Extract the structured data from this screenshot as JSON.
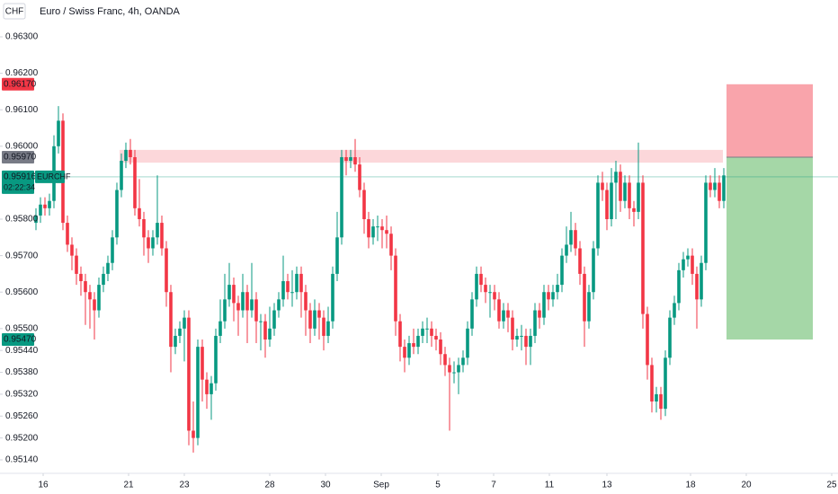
{
  "chart_data": {
    "type": "candlestick",
    "currency": "CHF",
    "title": "Euro / Swiss Franc, 4h, OANDA",
    "up_color": "#089981",
    "down_color": "#f23645",
    "open": [
      0.9579,
      0.9581,
      0.9584,
      0.9583,
      0.9585,
      0.96,
      0.9607,
      0.9579,
      0.9573,
      0.957,
      0.9565,
      0.9563,
      0.956,
      0.9558,
      0.9555,
      0.9562,
      0.9565,
      0.9568,
      0.9575,
      0.9588,
      0.9596,
      0.9599,
      0.9597,
      0.9583,
      0.958,
      0.9575,
      0.9572,
      0.9575,
      0.9579,
      0.9572,
      0.956,
      0.9545,
      0.9548,
      0.955,
      0.9553,
      0.9522,
      0.952,
      0.9545,
      0.9536,
      0.9532,
      0.9535,
      0.9548,
      0.9552,
      0.9558,
      0.9562,
      0.9557,
      0.9555,
      0.956,
      0.9555,
      0.9558,
      0.9552,
      0.9552,
      0.9547,
      0.955,
      0.9555,
      0.9558,
      0.9563,
      0.956,
      0.956,
      0.9565,
      0.956,
      0.9555,
      0.955,
      0.9555,
      0.9553,
      0.9548,
      0.9552,
      0.9565,
      0.9575,
      0.9597,
      0.9596,
      0.9597,
      0.9595,
      0.9588,
      0.958,
      0.9575,
      0.9578,
      0.9578,
      0.9577,
      0.9576,
      0.957,
      0.9552,
      0.9545,
      0.9542,
      0.9546,
      0.9545,
      0.9548,
      0.955,
      0.955,
      0.9548,
      0.9547,
      0.9543,
      0.954,
      0.9538,
      0.9538,
      0.954,
      0.9542,
      0.955,
      0.9558,
      0.9565,
      0.9562,
      0.956,
      0.956,
      0.9558,
      0.9552,
      0.9555,
      0.9553,
      0.9547,
      0.9548,
      0.9548,
      0.9545,
      0.9548,
      0.9555,
      0.9553,
      0.956,
      0.9558,
      0.956,
      0.9562,
      0.957,
      0.9573,
      0.9577,
      0.9572,
      0.9565,
      0.9552,
      0.956,
      0.9572,
      0.959,
      0.9588,
      0.958,
      0.959,
      0.9593,
      0.9585,
      0.959,
      0.9583,
      0.9582,
      0.959,
      0.9554,
      0.954,
      0.953,
      0.9532,
      0.9528,
      0.9542,
      0.9553,
      0.9557,
      0.9566,
      0.9569,
      0.957,
      0.9565,
      0.9558,
      0.9568,
      0.959,
      0.9588,
      0.959,
      0.9585
    ],
    "high": [
      0.9583,
      0.9586,
      0.9586,
      0.9587,
      0.9603,
      0.9611,
      0.9609,
      0.9581,
      0.9575,
      0.9572,
      0.9567,
      0.9565,
      0.9562,
      0.956,
      0.9564,
      0.9567,
      0.957,
      0.9577,
      0.959,
      0.9598,
      0.9601,
      0.9602,
      0.9599,
      0.9591,
      0.9582,
      0.9577,
      0.9577,
      0.9592,
      0.9581,
      0.9574,
      0.9562,
      0.955,
      0.9552,
      0.9555,
      0.9555,
      0.953,
      0.9547,
      0.9547,
      0.9538,
      0.9537,
      0.955,
      0.9558,
      0.9565,
      0.9568,
      0.9564,
      0.9559,
      0.9565,
      0.9562,
      0.9568,
      0.956,
      0.9554,
      0.9554,
      0.9556,
      0.9557,
      0.956,
      0.957,
      0.9565,
      0.9566,
      0.9567,
      0.9567,
      0.9562,
      0.9557,
      0.9558,
      0.9557,
      0.9555,
      0.9556,
      0.9567,
      0.9582,
      0.9599,
      0.9599,
      0.9599,
      0.9602,
      0.9597,
      0.959,
      0.9582,
      0.958,
      0.9581,
      0.958,
      0.9581,
      0.9578,
      0.9572,
      0.9554,
      0.9547,
      0.9548,
      0.955,
      0.955,
      0.9552,
      0.9553,
      0.9552,
      0.955,
      0.9549,
      0.9545,
      0.9542,
      0.9541,
      0.9542,
      0.9544,
      0.9552,
      0.956,
      0.9567,
      0.9567,
      0.9564,
      0.9562,
      0.9562,
      0.956,
      0.9557,
      0.9557,
      0.9555,
      0.955,
      0.9551,
      0.955,
      0.955,
      0.9557,
      0.9557,
      0.9562,
      0.9562,
      0.9562,
      0.9565,
      0.9572,
      0.9578,
      0.9582,
      0.9579,
      0.9574,
      0.9567,
      0.9562,
      0.9574,
      0.9592,
      0.9593,
      0.959,
      0.9594,
      0.9596,
      0.9595,
      0.9592,
      0.9592,
      0.9585,
      0.9601,
      0.9592,
      0.9556,
      0.9542,
      0.9534,
      0.9534,
      0.9544,
      0.9555,
      0.9559,
      0.9568,
      0.9571,
      0.9572,
      0.9572,
      0.9567,
      0.957,
      0.9592,
      0.9592,
      0.9594,
      0.9592,
      0.9594
    ],
    "low": [
      0.9577,
      0.9579,
      0.9581,
      0.9581,
      0.9583,
      0.9598,
      0.9577,
      0.9571,
      0.9566,
      0.9562,
      0.9559,
      0.9551,
      0.955,
      0.9547,
      0.9553,
      0.956,
      0.9563,
      0.9566,
      0.9573,
      0.9586,
      0.9594,
      0.9595,
      0.9581,
      0.9578,
      0.957,
      0.9568,
      0.957,
      0.9573,
      0.957,
      0.9556,
      0.9538,
      0.9543,
      0.9546,
      0.9541,
      0.9518,
      0.9516,
      0.9518,
      0.953,
      0.9528,
      0.9525,
      0.9533,
      0.9546,
      0.955,
      0.9556,
      0.9552,
      0.9548,
      0.9553,
      0.9546,
      0.9553,
      0.9546,
      0.9544,
      0.9542,
      0.9545,
      0.9548,
      0.9553,
      0.9556,
      0.9558,
      0.9556,
      0.9558,
      0.9553,
      0.9548,
      0.9546,
      0.9548,
      0.9547,
      0.9544,
      0.9546,
      0.955,
      0.9563,
      0.9573,
      0.9592,
      0.9594,
      0.9593,
      0.9586,
      0.9576,
      0.9572,
      0.9573,
      0.9574,
      0.9572,
      0.9572,
      0.9566,
      0.9548,
      0.9541,
      0.9538,
      0.954,
      0.9543,
      0.9543,
      0.9546,
      0.9546,
      0.9545,
      0.9544,
      0.954,
      0.9537,
      0.9522,
      0.9535,
      0.9532,
      0.9538,
      0.954,
      0.9548,
      0.9556,
      0.956,
      0.9557,
      0.9553,
      0.9555,
      0.955,
      0.955,
      0.9549,
      0.9544,
      0.9545,
      0.9544,
      0.954,
      0.954,
      0.9546,
      0.955,
      0.9551,
      0.9555,
      0.9556,
      0.9558,
      0.956,
      0.9568,
      0.9571,
      0.957,
      0.9562,
      0.9545,
      0.955,
      0.9558,
      0.957,
      0.9585,
      0.9577,
      0.9578,
      0.958,
      0.9582,
      0.9583,
      0.958,
      0.9578,
      0.958,
      0.955,
      0.9536,
      0.9527,
      0.9527,
      0.9525,
      0.9526,
      0.954,
      0.9551,
      0.9555,
      0.9564,
      0.9567,
      0.9562,
      0.955,
      0.9556,
      0.9566,
      0.9586,
      0.9586,
      0.9583,
      0.9583
    ],
    "close": [
      0.9581,
      0.9584,
      0.9583,
      0.9585,
      0.96,
      0.9607,
      0.9579,
      0.9573,
      0.957,
      0.9565,
      0.9563,
      0.956,
      0.9558,
      0.9555,
      0.9562,
      0.9565,
      0.9568,
      0.9575,
      0.9588,
      0.9596,
      0.9599,
      0.9597,
      0.9583,
      0.958,
      0.9575,
      0.9572,
      0.9575,
      0.9579,
      0.9572,
      0.956,
      0.9545,
      0.9548,
      0.955,
      0.9553,
      0.9522,
      0.952,
      0.9545,
      0.9536,
      0.9532,
      0.9535,
      0.9548,
      0.9552,
      0.9558,
      0.9562,
      0.9557,
      0.9555,
      0.956,
      0.9555,
      0.9558,
      0.9552,
      0.9552,
      0.9547,
      0.955,
      0.9555,
      0.9558,
      0.9563,
      0.956,
      0.956,
      0.9565,
      0.956,
      0.9555,
      0.955,
      0.9555,
      0.9553,
      0.9548,
      0.9552,
      0.9565,
      0.9575,
      0.9597,
      0.9596,
      0.9597,
      0.9595,
      0.9588,
      0.958,
      0.9575,
      0.9578,
      0.9578,
      0.9577,
      0.9576,
      0.957,
      0.9552,
      0.9545,
      0.9542,
      0.9546,
      0.9545,
      0.9548,
      0.955,
      0.955,
      0.9548,
      0.9547,
      0.9543,
      0.954,
      0.9538,
      0.9538,
      0.954,
      0.9542,
      0.955,
      0.9558,
      0.9565,
      0.9562,
      0.956,
      0.956,
      0.9558,
      0.9552,
      0.9555,
      0.9553,
      0.9547,
      0.9548,
      0.9548,
      0.9545,
      0.9548,
      0.9555,
      0.9553,
      0.956,
      0.9558,
      0.956,
      0.9562,
      0.957,
      0.9573,
      0.9577,
      0.9572,
      0.9565,
      0.9552,
      0.956,
      0.9572,
      0.959,
      0.9588,
      0.958,
      0.959,
      0.9593,
      0.9585,
      0.959,
      0.9583,
      0.9582,
      0.959,
      0.9554,
      0.954,
      0.953,
      0.9532,
      0.9528,
      0.9542,
      0.9553,
      0.9557,
      0.9566,
      0.9569,
      0.957,
      0.9565,
      0.9558,
      0.9568,
      0.959,
      0.9588,
      0.959,
      0.9585,
      0.9592
    ],
    "xlim": [
      -0.4,
      178.4
    ],
    "xticks": [
      {
        "value": 1.6,
        "label": "16"
      },
      {
        "value": 20.6,
        "label": "21"
      },
      {
        "value": 33,
        "label": "23"
      },
      {
        "value": 52,
        "label": "28"
      },
      {
        "value": 64.4,
        "label": "30"
      },
      {
        "value": 76.8,
        "label": "Sep"
      },
      {
        "value": 89.4,
        "label": "5"
      },
      {
        "value": 101.8,
        "label": "7"
      },
      {
        "value": 114.2,
        "label": "11"
      },
      {
        "value": 127,
        "label": "13"
      },
      {
        "value": 145.6,
        "label": "18"
      },
      {
        "value": 158,
        "label": "20"
      },
      {
        "value": 177,
        "label": "25"
      }
    ],
    "ylim": [
      0.95103,
      0.96401
    ],
    "yticks": [
      {
        "value": 0.963,
        "label": "0.96300"
      },
      {
        "value": 0.962,
        "label": "0.96200"
      },
      {
        "value": 0.961,
        "label": "0.96100"
      },
      {
        "value": 0.96,
        "label": "0.96000"
      },
      {
        "value": 0.958,
        "label": "0.95800"
      },
      {
        "value": 0.957,
        "label": "0.95700"
      },
      {
        "value": 0.956,
        "label": "0.95600"
      },
      {
        "value": 0.955,
        "label": "0.95500"
      },
      {
        "value": 0.9544,
        "label": "0.95440"
      },
      {
        "value": 0.9538,
        "label": "0.95380"
      },
      {
        "value": 0.9532,
        "label": "0.95320"
      },
      {
        "value": 0.9526,
        "label": "0.95260"
      },
      {
        "value": 0.952,
        "label": "0.95200"
      },
      {
        "value": 0.9514,
        "label": "0.95140"
      }
    ],
    "zone": [
      0.95955,
      0.9599
    ],
    "position": {
      "stop": {
        "value": 0.9617,
        "label": "0.96170"
      },
      "entry": {
        "value": 0.9597,
        "label": "0.95970"
      },
      "target": {
        "value": 0.9547,
        "label": "0.95470"
      }
    },
    "current": {
      "value": 0.95916,
      "label": "0.95916",
      "symbol": "EURCHF",
      "countdown": "02:22:34"
    }
  }
}
